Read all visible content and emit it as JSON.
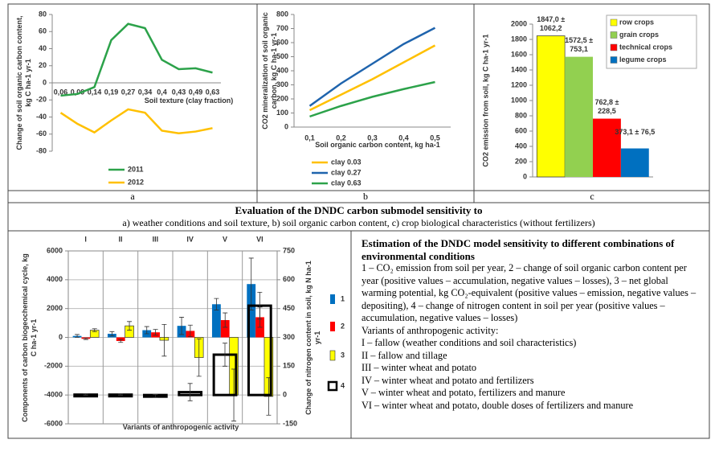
{
  "chart_data": [
    {
      "type": "line",
      "x_label": "Soil texture (clay fraction)",
      "y_label": "Change of soil organic carbon content, kg C ha-1 yr-1",
      "categories": [
        "0,06",
        "0,09",
        "0,14",
        "0,19",
        "0,27",
        "0,34",
        "0,4",
        "0,43",
        "0,49",
        "0,63"
      ],
      "series": [
        {
          "name": "2011",
          "color": "#2ca24a",
          "values": [
            -15,
            -13,
            -5,
            50,
            69,
            64,
            27,
            16,
            17,
            12
          ]
        },
        {
          "name": "2012",
          "color": "#ffc000",
          "values": [
            -35,
            -48,
            -58,
            -44,
            -31,
            -35,
            -56,
            -59,
            -57,
            -53
          ]
        }
      ],
      "ylim": [
        -80,
        80
      ],
      "yticks": [
        -80,
        -60,
        -40,
        -20,
        0,
        20,
        40,
        60,
        80
      ],
      "grid": false
    },
    {
      "type": "line",
      "x_label": "Soil organic carbon content, kg ha-1",
      "y_label": "CO2 mineralization of soil organic carbon, kg C ha-1 yr-1",
      "categories": [
        "0,1",
        "0,2",
        "0,3",
        "0,4",
        "0,5"
      ],
      "series": [
        {
          "name": "clay 0.03",
          "color": "#ffc000",
          "values": [
            120,
            230,
            340,
            460,
            580
          ]
        },
        {
          "name": "clay 0.27",
          "color": "#1f64ad",
          "values": [
            150,
            310,
            450,
            590,
            705
          ]
        },
        {
          "name": "clay 0.63",
          "color": "#2ca24a",
          "values": [
            75,
            150,
            215,
            270,
            320
          ]
        }
      ],
      "ylim": [
        0,
        800
      ],
      "yticks": [
        0,
        100,
        200,
        300,
        400,
        500,
        600,
        700,
        800
      ],
      "grid": false
    },
    {
      "type": "bar",
      "y_label": "CO2 emission from soil, kg C ha-1 yr-1",
      "series": [
        {
          "name": "row crops",
          "color": "#ffff00",
          "values": [
            1847.0
          ],
          "value_labels": [
            "1847,0 ± 1062,2"
          ]
        },
        {
          "name": "grain crops",
          "color": "#92d050",
          "values": [
            1572.5
          ],
          "value_labels": [
            "1572,5 ± 753,1"
          ]
        },
        {
          "name": "technical crops",
          "color": "#ff0000",
          "values": [
            762.8
          ],
          "value_labels": [
            "762,8 ± 228,5"
          ]
        },
        {
          "name": "legume crops",
          "color": "#0070c0",
          "values": [
            373.1
          ],
          "value_labels": [
            "373,1 ± 76,5"
          ]
        }
      ],
      "ylim": [
        0,
        2000
      ],
      "yticks": [
        0,
        200,
        400,
        600,
        800,
        1000,
        1200,
        1400,
        1600,
        1800,
        2000
      ],
      "grid": false
    },
    {
      "type": "bar",
      "x_label": "Variants of anthropogenic activity",
      "y_label": "Components of carbon biogeochemical cycle, kg C ha-1 yr-1",
      "y2_label": "Change of nitrogen content in soil, kg N ha-1 yr-1",
      "categories": [
        "I",
        "II",
        "III",
        "IV",
        "V",
        "VI"
      ],
      "series": [
        {
          "name": "1",
          "color": "#0070c0",
          "values": [
            100,
            250,
            500,
            800,
            2300,
            3700
          ],
          "errors": [
            100,
            150,
            250,
            600,
            400,
            1800
          ]
        },
        {
          "name": "2",
          "color": "#ff0000",
          "values": [
            -100,
            -250,
            350,
            450,
            1200,
            1400
          ],
          "errors": [
            50,
            100,
            200,
            400,
            500,
            700
          ]
        },
        {
          "name": "3",
          "color": "#ffff00",
          "values": [
            500,
            800,
            -200,
            -1400,
            -4000,
            -4100
          ],
          "errors": [
            100,
            300,
            1100,
            1300,
            1800,
            1300
          ]
        },
        {
          "name": "4",
          "color": "#000000",
          "axis": "y2",
          "style": "outline",
          "values": [
            2,
            2,
            -5,
            15,
            210,
            465
          ],
          "errors": [
            3,
            3,
            8,
            45,
            60,
            70
          ]
        }
      ],
      "ylim": [
        -6000,
        6000
      ],
      "yticks": [
        -6000,
        -4000,
        -2000,
        0,
        2000,
        4000,
        6000
      ],
      "y2lim": [
        -150,
        750
      ],
      "y2ticks": [
        -150,
        0,
        150,
        300,
        450,
        600,
        750
      ],
      "grid": true
    }
  ],
  "panel_labels": [
    "a",
    "b",
    "c"
  ],
  "caption": {
    "title": "Evaluation of the DNDC carbon submodel sensitivity to",
    "subtitle": "a) weather conditions and soil texture, b) soil organic carbon content, c) crop biological characteristics (without fertilizers)"
  },
  "description": {
    "title": "Estimation of the DNDC model sensitivity to different combinations of environmental conditions",
    "text": "1 – CO₂ emission from soil per year, 2 – change of soil organic carbon content per year (positive values – accumulation, negative values – losses), 3 – net global warming potential, kg CO₂-equivalent (positive values – emission, negative values – depositing), 4 – change of nitrogen content in soil per year (positive values – accumulation, negative values – losses)",
    "variants_title": "Variants of anthropogenic activity:",
    "variants": [
      "I – fallow (weather conditions and soil characteristics)",
      "II – fallow and tillage",
      "III – winter wheat and potato",
      "IV – winter wheat and potato and fertilizers",
      "V – winter wheat and potato, fertilizers and manure",
      "VI – winter wheat and potato, double doses of fertilizers and manure"
    ]
  }
}
